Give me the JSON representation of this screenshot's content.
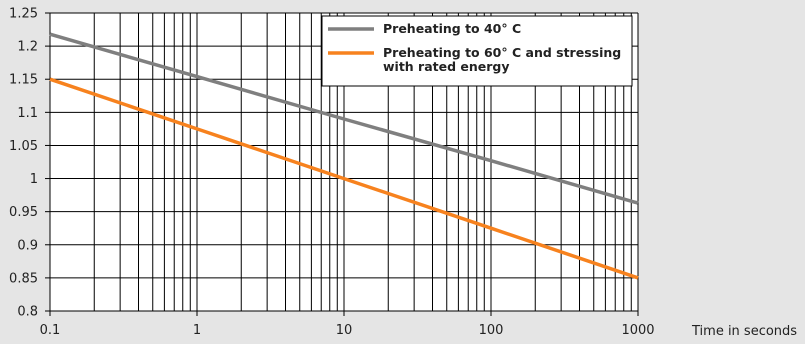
{
  "chart_data": {
    "type": "line",
    "x_scale": "log",
    "xlim": [
      0.1,
      1000
    ],
    "ylim": [
      0.8,
      1.25
    ],
    "xlabel": "Time in seconds",
    "ylabel": "",
    "title": "",
    "grid": true,
    "legend_position": "top-right",
    "x_ticks": [
      {
        "value": 0.1,
        "label": "0.1"
      },
      {
        "value": 1,
        "label": "1"
      },
      {
        "value": 10,
        "label": "10"
      },
      {
        "value": 100,
        "label": "100"
      },
      {
        "value": 1000,
        "label": "1000"
      }
    ],
    "y_ticks": [
      {
        "value": 0.8,
        "label": "0.8"
      },
      {
        "value": 0.85,
        "label": "0.85"
      },
      {
        "value": 0.9,
        "label": "0.9"
      },
      {
        "value": 0.95,
        "label": "0.95"
      },
      {
        "value": 1.0,
        "label": "1"
      },
      {
        "value": 1.05,
        "label": "1.05"
      },
      {
        "value": 1.1,
        "label": "1.1"
      },
      {
        "value": 1.15,
        "label": "1.15"
      },
      {
        "value": 1.2,
        "label": "1.2"
      },
      {
        "value": 1.25,
        "label": "1.25"
      }
    ],
    "series": [
      {
        "name": "Preheating to 40° C",
        "color": "#7f7f7f",
        "x": [
          0.1,
          1,
          10,
          100,
          1000
        ],
        "y": [
          1.218,
          1.154,
          1.09,
          1.027,
          0.963
        ]
      },
      {
        "name": "Preheating to 60° C and stressing with rated energy",
        "name_lines": [
          "Preheating to 60° C and stressing",
          "with rated energy"
        ],
        "color": "#f7821e",
        "x": [
          0.1,
          1,
          10,
          100,
          1000
        ],
        "y": [
          1.15,
          1.075,
          1.0,
          0.925,
          0.85
        ]
      }
    ]
  }
}
